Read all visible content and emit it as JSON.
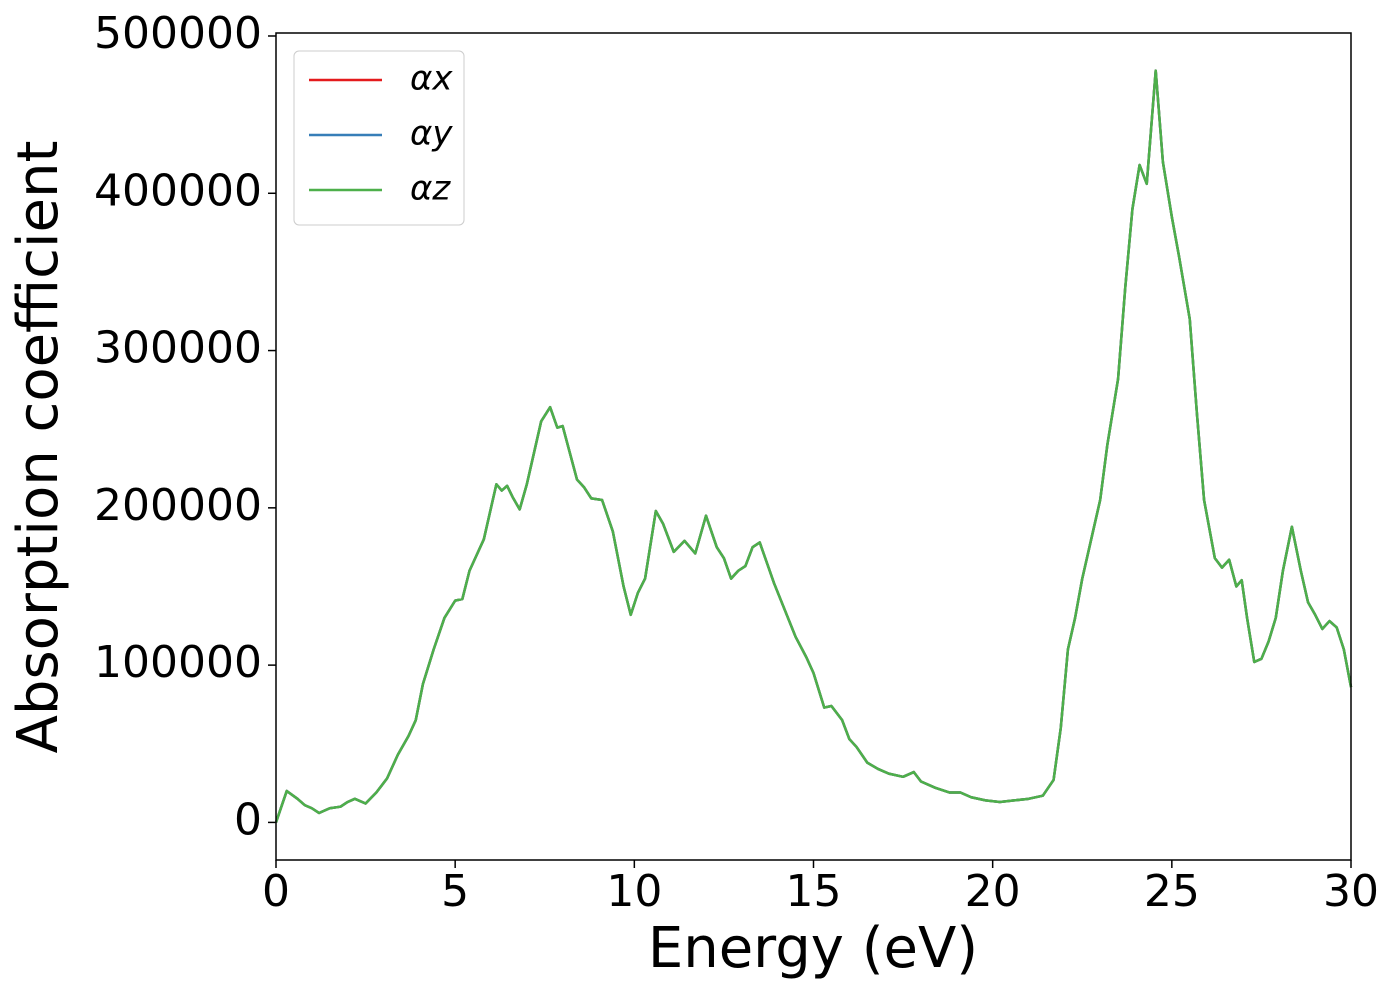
{
  "chart_data": {
    "type": "line",
    "xlabel": "Energy (eV)",
    "ylabel": "Absorption coefficient",
    "xlim": [
      0,
      30
    ],
    "ylim": [
      -23900,
      501900
    ],
    "xticks": [
      0,
      5,
      10,
      15,
      20,
      25,
      30
    ],
    "yticks": [
      0,
      100000,
      200000,
      300000,
      400000,
      500000
    ],
    "grid": false,
    "legend": "upper left",
    "x": [
      0,
      0.3,
      0.6,
      0.8,
      1.0,
      1.2,
      1.5,
      1.8,
      2.0,
      2.2,
      2.5,
      2.8,
      3.1,
      3.4,
      3.7,
      3.9,
      4.1,
      4.4,
      4.7,
      5.0,
      5.2,
      5.4,
      5.6,
      5.8,
      6.0,
      6.15,
      6.3,
      6.45,
      6.6,
      6.8,
      7.0,
      7.2,
      7.4,
      7.65,
      7.85,
      8.0,
      8.2,
      8.4,
      8.6,
      8.8,
      9.1,
      9.4,
      9.7,
      9.9,
      10.1,
      10.3,
      10.6,
      10.8,
      11.1,
      11.4,
      11.7,
      12.0,
      12.3,
      12.5,
      12.7,
      12.9,
      13.1,
      13.3,
      13.5,
      13.7,
      13.9,
      14.2,
      14.5,
      14.8,
      15.0,
      15.3,
      15.5,
      15.8,
      16.0,
      16.2,
      16.5,
      16.8,
      17.1,
      17.5,
      17.8,
      18.0,
      18.4,
      18.8,
      19.1,
      19.4,
      19.8,
      20.2,
      20.6,
      21.0,
      21.4,
      21.7,
      21.9,
      22.1,
      22.3,
      22.5,
      22.8,
      23.0,
      23.2,
      23.5,
      23.7,
      23.9,
      24.1,
      24.3,
      24.55,
      24.75,
      25.0,
      25.2,
      25.5,
      25.7,
      25.9,
      26.2,
      26.4,
      26.6,
      26.8,
      26.95,
      27.1,
      27.3,
      27.5,
      27.7,
      27.9,
      28.1,
      28.35,
      28.6,
      28.8,
      29.0,
      29.2,
      29.4,
      29.6,
      29.8,
      30.0
    ],
    "series": [
      {
        "name": "αx",
        "color": "#e41a1c",
        "values": [
          0,
          20000,
          15000,
          11000,
          9000,
          6000,
          9000,
          10000,
          13000,
          15000,
          12000,
          19000,
          28000,
          43000,
          55000,
          65000,
          88000,
          110000,
          130000,
          141000,
          142000,
          160000,
          170000,
          180000,
          200000,
          215000,
          211000,
          214000,
          207000,
          199000,
          215000,
          235000,
          255000,
          264000,
          251000,
          252000,
          235000,
          218000,
          213000,
          206000,
          205000,
          185000,
          150000,
          132000,
          146000,
          155000,
          198000,
          190000,
          172000,
          179000,
          171000,
          195000,
          175000,
          168000,
          155000,
          160000,
          163000,
          175000,
          178000,
          165000,
          152000,
          135000,
          118000,
          105000,
          95000,
          73000,
          74000,
          65000,
          53000,
          48000,
          38000,
          34000,
          31000,
          29000,
          32000,
          26000,
          22000,
          19000,
          19000,
          16000,
          14000,
          13000,
          14000,
          15000,
          17000,
          27000,
          60000,
          110000,
          130000,
          155000,
          185000,
          205000,
          240000,
          282000,
          340000,
          390000,
          418000,
          406000,
          478000,
          420000,
          385000,
          360000,
          320000,
          260000,
          205000,
          168000,
          162000,
          167000,
          150000,
          154000,
          130000,
          102000,
          104000,
          115000,
          130000,
          160000,
          188000,
          160000,
          140000,
          132000,
          123000,
          128000,
          124000,
          110000,
          86000
        ]
      },
      {
        "name": "αy",
        "color": "#377eb8",
        "values": [
          0,
          20000,
          15000,
          11000,
          9000,
          6000,
          9000,
          10000,
          13000,
          15000,
          12000,
          19000,
          28000,
          43000,
          55000,
          65000,
          88000,
          110000,
          130000,
          141000,
          142000,
          160000,
          170000,
          180000,
          200000,
          215000,
          211000,
          214000,
          207000,
          199000,
          215000,
          235000,
          255000,
          264000,
          251000,
          252000,
          235000,
          218000,
          213000,
          206000,
          205000,
          185000,
          150000,
          132000,
          146000,
          155000,
          198000,
          190000,
          172000,
          179000,
          171000,
          195000,
          175000,
          168000,
          155000,
          160000,
          163000,
          175000,
          178000,
          165000,
          152000,
          135000,
          118000,
          105000,
          95000,
          73000,
          74000,
          65000,
          53000,
          48000,
          38000,
          34000,
          31000,
          29000,
          32000,
          26000,
          22000,
          19000,
          19000,
          16000,
          14000,
          13000,
          14000,
          15000,
          17000,
          27000,
          60000,
          110000,
          130000,
          155000,
          185000,
          205000,
          240000,
          282000,
          340000,
          390000,
          418000,
          406000,
          478000,
          420000,
          385000,
          360000,
          320000,
          260000,
          205000,
          168000,
          162000,
          167000,
          150000,
          154000,
          130000,
          102000,
          104000,
          115000,
          130000,
          160000,
          188000,
          160000,
          140000,
          132000,
          123000,
          128000,
          124000,
          110000,
          86000
        ]
      },
      {
        "name": "αz",
        "color": "#4daf4a",
        "values": [
          0,
          20000,
          15000,
          11000,
          9000,
          6000,
          9000,
          10000,
          13000,
          15000,
          12000,
          19000,
          28000,
          43000,
          55000,
          65000,
          88000,
          110000,
          130000,
          141000,
          142000,
          160000,
          170000,
          180000,
          200000,
          215000,
          211000,
          214000,
          207000,
          199000,
          215000,
          235000,
          255000,
          264000,
          251000,
          252000,
          235000,
          218000,
          213000,
          206000,
          205000,
          185000,
          150000,
          132000,
          146000,
          155000,
          198000,
          190000,
          172000,
          179000,
          171000,
          195000,
          175000,
          168000,
          155000,
          160000,
          163000,
          175000,
          178000,
          165000,
          152000,
          135000,
          118000,
          105000,
          95000,
          73000,
          74000,
          65000,
          53000,
          48000,
          38000,
          34000,
          31000,
          29000,
          32000,
          26000,
          22000,
          19000,
          19000,
          16000,
          14000,
          13000,
          14000,
          15000,
          17000,
          27000,
          60000,
          110000,
          130000,
          155000,
          185000,
          205000,
          240000,
          282000,
          340000,
          390000,
          418000,
          406000,
          478000,
          420000,
          385000,
          360000,
          320000,
          260000,
          205000,
          168000,
          162000,
          167000,
          150000,
          154000,
          130000,
          102000,
          104000,
          115000,
          130000,
          160000,
          188000,
          160000,
          140000,
          132000,
          123000,
          128000,
          124000,
          110000,
          86000
        ]
      }
    ]
  }
}
